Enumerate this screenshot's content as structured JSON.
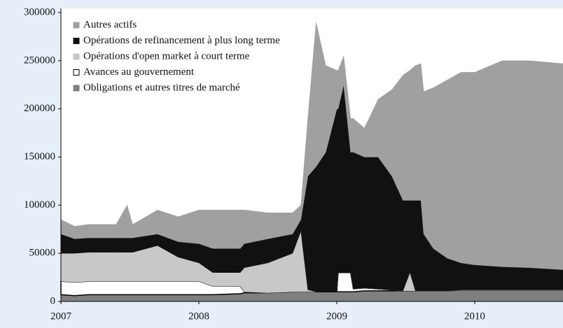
{
  "chart_data": {
    "type": "stacked_area",
    "x": [
      2007.0,
      2007.1,
      2007.2,
      2007.4,
      2007.48,
      2007.52,
      2007.7,
      2007.85,
      2008.0,
      2008.1,
      2008.3,
      2008.33,
      2008.5,
      2008.68,
      2008.74,
      2008.79,
      2008.85,
      2008.92,
      2009.0,
      2009.01,
      2009.05,
      2009.1,
      2009.12,
      2009.2,
      2009.3,
      2009.4,
      2009.48,
      2009.53,
      2009.57,
      2009.61,
      2009.63,
      2009.7,
      2009.8,
      2009.9,
      2010.0,
      2010.2,
      2010.4,
      2010.64
    ],
    "series": [
      {
        "name": "Obligations et autres titres de marché",
        "color": "#7f7f7f",
        "values": [
          7000,
          6000,
          7000,
          7000,
          7000,
          7000,
          7000,
          7000,
          7000,
          7000,
          8000,
          9000,
          9000,
          10000,
          10000,
          10000,
          10000,
          10000,
          10000,
          10000,
          10000,
          10000,
          10000,
          11000,
          11000,
          11000,
          11000,
          11000,
          11000,
          11000,
          11000,
          11000,
          11000,
          12000,
          12000,
          12000,
          12000,
          12000
        ]
      },
      {
        "name": "Avances au gouvernement",
        "color": "#ffffff",
        "values": [
          14000,
          14000,
          14000,
          14000,
          14000,
          14000,
          14000,
          14000,
          14000,
          9000,
          8000,
          1000,
          0,
          0,
          0,
          0,
          0,
          0,
          0,
          20000,
          20000,
          20000,
          3000,
          3000,
          2000,
          1000,
          0,
          0,
          0,
          0,
          0,
          0,
          0,
          0,
          0,
          0,
          0,
          0
        ]
      },
      {
        "name": "Opérations d'open market à court terme",
        "color": "#c8c8c8",
        "values": [
          29000,
          30000,
          30000,
          30000,
          30000,
          30000,
          37000,
          25000,
          19000,
          14000,
          14000,
          25000,
          31000,
          40000,
          63000,
          2000,
          0,
          0,
          0,
          0,
          0,
          0,
          0,
          0,
          0,
          0,
          0,
          19000,
          0,
          0,
          0,
          0,
          0,
          0,
          0,
          0,
          0,
          0
        ]
      },
      {
        "name": "Opérations de refinancement à plus long terme",
        "color": "#111111",
        "values": [
          20000,
          15000,
          15000,
          15000,
          15000,
          15000,
          12000,
          16000,
          20000,
          25000,
          25000,
          25000,
          25000,
          20000,
          12000,
          118000,
          130000,
          145000,
          190000,
          170000,
          195000,
          125000,
          142000,
          136000,
          137000,
          118000,
          94000,
          75000,
          94000,
          94000,
          59000,
          44000,
          34000,
          28000,
          26000,
          24000,
          23000,
          21000
        ]
      },
      {
        "name": "Autres actifs",
        "color": "#a0a0a0",
        "values": [
          15000,
          13000,
          14000,
          14000,
          34000,
          14000,
          25000,
          26000,
          35000,
          40000,
          40000,
          35000,
          27000,
          22000,
          15000,
          60000,
          150000,
          90000,
          40000,
          40000,
          30000,
          35000,
          35000,
          30000,
          60000,
          90000,
          130000,
          135000,
          140000,
          142000,
          148000,
          167000,
          185000,
          198000,
          200000,
          214000,
          215000,
          214000
        ]
      }
    ],
    "xlim": [
      2007,
      2010.64
    ],
    "xticks": [
      2007,
      2008,
      2009,
      2010
    ],
    "ylim": [
      0,
      300000
    ],
    "yticks": [
      0,
      50000,
      100000,
      150000,
      200000,
      250000,
      300000
    ],
    "legend": "upper left"
  }
}
